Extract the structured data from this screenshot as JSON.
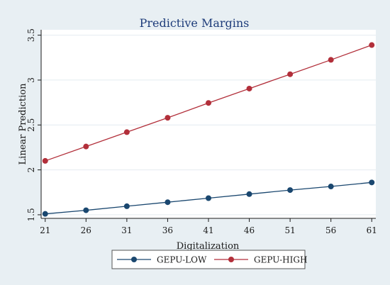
{
  "chart_data": {
    "type": "line",
    "title": "Predictive Margins",
    "xlabel": "Digitalization",
    "ylabel": "Linear Prediction",
    "x": [
      21,
      26,
      31,
      36,
      41,
      46,
      51,
      56,
      61
    ],
    "xticks": [
      "21",
      "26",
      "31",
      "36",
      "41",
      "46",
      "51",
      "56",
      "61"
    ],
    "yticks": [
      "1.5",
      "2",
      "2.5",
      "3",
      "3.5"
    ],
    "ytick_values": [
      1.5,
      2,
      2.5,
      3,
      3.5
    ],
    "xlim": [
      20.5,
      61.5
    ],
    "ylim": [
      1.46,
      3.56
    ],
    "grid": "horizontal",
    "legend_position": "bottom",
    "series": [
      {
        "name": "GEPU-LOW",
        "color": "#1a476f",
        "values": [
          1.51,
          1.55,
          1.595,
          1.64,
          1.685,
          1.73,
          1.775,
          1.815,
          1.86
        ]
      },
      {
        "name": "GEPU-HIGH",
        "color": "#b22f3a",
        "values": [
          2.1,
          2.26,
          2.42,
          2.58,
          2.745,
          2.905,
          3.065,
          3.225,
          3.39
        ]
      }
    ]
  }
}
